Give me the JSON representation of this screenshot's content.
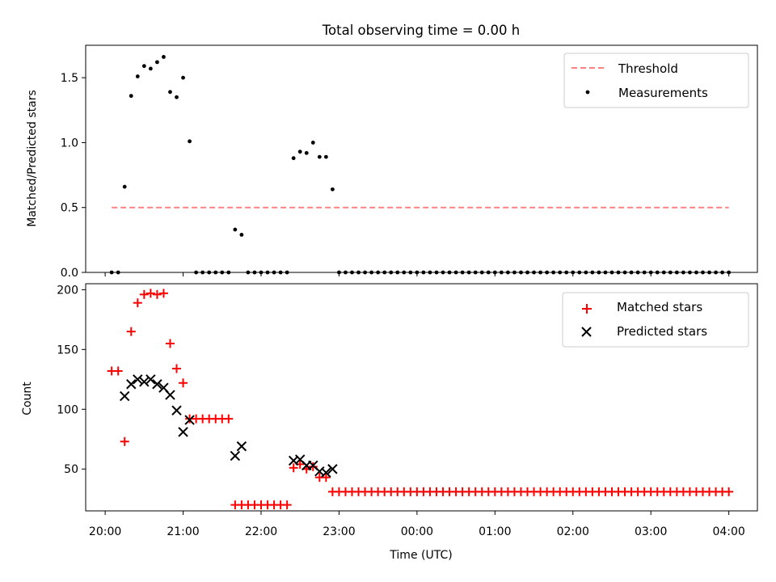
{
  "title": "Total observing time = 0.00 h",
  "chart_data": [
    {
      "type": "scatter",
      "ylabel": "Matched/Predicted stars",
      "ylim": [
        0,
        1.75
      ],
      "yticks": [
        0.0,
        0.5,
        1.0,
        1.5
      ],
      "ytick_labels": [
        "0.0",
        "0.5",
        "1.0",
        "1.5"
      ],
      "x_range": [
        "19:45",
        "04:22"
      ],
      "xticks": [
        "20:00",
        "21:00",
        "22:00",
        "23:00",
        "00:00",
        "01:00",
        "02:00",
        "03:00",
        "04:00"
      ],
      "legend_position": "top-right",
      "threshold": {
        "name": "Threshold",
        "value": 0.5,
        "color": "#ff8080",
        "x_start": "20:05",
        "x_end": "04:00"
      },
      "series": [
        {
          "name": "Measurements",
          "color": "#000000",
          "marker": "dot",
          "points": [
            [
              "20:05",
              0
            ],
            [
              "20:10",
              0
            ],
            [
              "20:15",
              0.66
            ],
            [
              "20:20",
              1.36
            ],
            [
              "20:25",
              1.51
            ],
            [
              "20:30",
              1.59
            ],
            [
              "20:35",
              1.57
            ],
            [
              "20:40",
              1.62
            ],
            [
              "20:45",
              1.66
            ],
            [
              "20:50",
              1.39
            ],
            [
              "20:55",
              1.35
            ],
            [
              "21:00",
              1.5
            ],
            [
              "21:05",
              1.01
            ],
            [
              "21:10",
              0
            ],
            [
              "21:15",
              0
            ],
            [
              "21:20",
              0
            ],
            [
              "21:25",
              0
            ],
            [
              "21:30",
              0
            ],
            [
              "21:35",
              0
            ],
            [
              "21:40",
              0.33
            ],
            [
              "21:45",
              0.29
            ],
            [
              "21:50",
              0
            ],
            [
              "21:55",
              0
            ],
            [
              "22:00",
              0
            ],
            [
              "22:05",
              0
            ],
            [
              "22:10",
              0
            ],
            [
              "22:15",
              0
            ],
            [
              "22:20",
              0
            ],
            [
              "22:25",
              0.88
            ],
            [
              "22:30",
              0.93
            ],
            [
              "22:35",
              0.92
            ],
            [
              "22:40",
              1.0
            ],
            [
              "22:45",
              0.89
            ],
            [
              "22:50",
              0.89
            ],
            [
              "22:55",
              0.64
            ],
            [
              "23:00",
              0
            ],
            [
              "23:05",
              0
            ],
            [
              "23:10",
              0
            ],
            [
              "23:15",
              0
            ],
            [
              "23:20",
              0
            ],
            [
              "23:25",
              0
            ],
            [
              "23:30",
              0
            ],
            [
              "23:35",
              0
            ],
            [
              "23:40",
              0
            ],
            [
              "23:45",
              0
            ],
            [
              "23:50",
              0
            ],
            [
              "23:55",
              0
            ],
            [
              "00:00",
              0
            ],
            [
              "00:05",
              0
            ],
            [
              "00:10",
              0
            ],
            [
              "00:15",
              0
            ],
            [
              "00:20",
              0
            ],
            [
              "00:25",
              0
            ],
            [
              "00:30",
              0
            ],
            [
              "00:35",
              0
            ],
            [
              "00:40",
              0
            ],
            [
              "00:45",
              0
            ],
            [
              "00:50",
              0
            ],
            [
              "00:55",
              0
            ],
            [
              "01:00",
              0
            ],
            [
              "01:05",
              0
            ],
            [
              "01:10",
              0
            ],
            [
              "01:15",
              0
            ],
            [
              "01:20",
              0
            ],
            [
              "01:25",
              0
            ],
            [
              "01:30",
              0
            ],
            [
              "01:35",
              0
            ],
            [
              "01:40",
              0
            ],
            [
              "01:45",
              0
            ],
            [
              "01:50",
              0
            ],
            [
              "01:55",
              0
            ],
            [
              "02:00",
              0
            ],
            [
              "02:05",
              0
            ],
            [
              "02:10",
              0
            ],
            [
              "02:15",
              0
            ],
            [
              "02:20",
              0
            ],
            [
              "02:25",
              0
            ],
            [
              "02:30",
              0
            ],
            [
              "02:35",
              0
            ],
            [
              "02:40",
              0
            ],
            [
              "02:45",
              0
            ],
            [
              "02:50",
              0
            ],
            [
              "02:55",
              0
            ],
            [
              "03:00",
              0
            ],
            [
              "03:05",
              0
            ],
            [
              "03:10",
              0
            ],
            [
              "03:15",
              0
            ],
            [
              "03:20",
              0
            ],
            [
              "03:25",
              0
            ],
            [
              "03:30",
              0
            ],
            [
              "03:35",
              0
            ],
            [
              "03:40",
              0
            ],
            [
              "03:45",
              0
            ],
            [
              "03:50",
              0
            ],
            [
              "03:55",
              0
            ],
            [
              "04:00",
              0
            ]
          ]
        }
      ]
    },
    {
      "type": "scatter",
      "xlabel": "Time (UTC)",
      "ylabel": "Count",
      "ylim": [
        15,
        205
      ],
      "yticks": [
        50,
        100,
        150,
        200
      ],
      "ytick_labels": [
        "50",
        "100",
        "150",
        "200"
      ],
      "x_range": [
        "19:45",
        "04:22"
      ],
      "xticks": [
        "20:00",
        "21:00",
        "22:00",
        "23:00",
        "00:00",
        "01:00",
        "02:00",
        "03:00",
        "04:00"
      ],
      "legend_position": "top-right",
      "series": [
        {
          "name": "Matched stars",
          "color": "#ff0000",
          "marker": "plus",
          "points": [
            [
              "20:05",
              132
            ],
            [
              "20:10",
              132
            ],
            [
              "20:15",
              73
            ],
            [
              "20:20",
              165
            ],
            [
              "20:25",
              189
            ],
            [
              "20:30",
              196
            ],
            [
              "20:35",
              197
            ],
            [
              "20:40",
              196
            ],
            [
              "20:45",
              197
            ],
            [
              "20:50",
              155
            ],
            [
              "20:55",
              134
            ],
            [
              "21:00",
              122
            ],
            [
              "21:05",
              92
            ],
            [
              "21:10",
              92
            ],
            [
              "21:15",
              92
            ],
            [
              "21:20",
              92
            ],
            [
              "21:25",
              92
            ],
            [
              "21:30",
              92
            ],
            [
              "21:35",
              92
            ],
            [
              "21:40",
              20
            ],
            [
              "21:45",
              20
            ],
            [
              "21:50",
              20
            ],
            [
              "21:55",
              20
            ],
            [
              "22:00",
              20
            ],
            [
              "22:05",
              20
            ],
            [
              "22:10",
              20
            ],
            [
              "22:15",
              20
            ],
            [
              "22:20",
              20
            ],
            [
              "22:25",
              51
            ],
            [
              "22:30",
              54
            ],
            [
              "22:35",
              50
            ],
            [
              "22:40",
              52
            ],
            [
              "22:45",
              43
            ],
            [
              "22:50",
              43
            ],
            [
              "22:55",
              31
            ],
            [
              "23:00",
              31
            ],
            [
              "23:05",
              31
            ],
            [
              "23:10",
              31
            ],
            [
              "23:15",
              31
            ],
            [
              "23:20",
              31
            ],
            [
              "23:25",
              31
            ],
            [
              "23:30",
              31
            ],
            [
              "23:35",
              31
            ],
            [
              "23:40",
              31
            ],
            [
              "23:45",
              31
            ],
            [
              "23:50",
              31
            ],
            [
              "23:55",
              31
            ],
            [
              "00:00",
              31
            ],
            [
              "00:05",
              31
            ],
            [
              "00:10",
              31
            ],
            [
              "00:15",
              31
            ],
            [
              "00:20",
              31
            ],
            [
              "00:25",
              31
            ],
            [
              "00:30",
              31
            ],
            [
              "00:35",
              31
            ],
            [
              "00:40",
              31
            ],
            [
              "00:45",
              31
            ],
            [
              "00:50",
              31
            ],
            [
              "00:55",
              31
            ],
            [
              "01:00",
              31
            ],
            [
              "01:05",
              31
            ],
            [
              "01:10",
              31
            ],
            [
              "01:15",
              31
            ],
            [
              "01:20",
              31
            ],
            [
              "01:25",
              31
            ],
            [
              "01:30",
              31
            ],
            [
              "01:35",
              31
            ],
            [
              "01:40",
              31
            ],
            [
              "01:45",
              31
            ],
            [
              "01:50",
              31
            ],
            [
              "01:55",
              31
            ],
            [
              "02:00",
              31
            ],
            [
              "02:05",
              31
            ],
            [
              "02:10",
              31
            ],
            [
              "02:15",
              31
            ],
            [
              "02:20",
              31
            ],
            [
              "02:25",
              31
            ],
            [
              "02:30",
              31
            ],
            [
              "02:35",
              31
            ],
            [
              "02:40",
              31
            ],
            [
              "02:45",
              31
            ],
            [
              "02:50",
              31
            ],
            [
              "02:55",
              31
            ],
            [
              "03:00",
              31
            ],
            [
              "03:05",
              31
            ],
            [
              "03:10",
              31
            ],
            [
              "03:15",
              31
            ],
            [
              "03:20",
              31
            ],
            [
              "03:25",
              31
            ],
            [
              "03:30",
              31
            ],
            [
              "03:35",
              31
            ],
            [
              "03:40",
              31
            ],
            [
              "03:45",
              31
            ],
            [
              "03:50",
              31
            ],
            [
              "03:55",
              31
            ],
            [
              "04:00",
              31
            ]
          ]
        },
        {
          "name": "Predicted stars",
          "color": "#000000",
          "marker": "x",
          "points": [
            [
              "20:15",
              111
            ],
            [
              "20:20",
              121
            ],
            [
              "20:25",
              125
            ],
            [
              "20:30",
              123
            ],
            [
              "20:35",
              125
            ],
            [
              "20:40",
              121
            ],
            [
              "20:45",
              118
            ],
            [
              "20:50",
              112
            ],
            [
              "20:55",
              99
            ],
            [
              "21:00",
              81
            ],
            [
              "21:05",
              91
            ],
            [
              "21:40",
              61
            ],
            [
              "21:45",
              69
            ],
            [
              "22:25",
              57
            ],
            [
              "22:30",
              58
            ],
            [
              "22:35",
              53
            ],
            [
              "22:40",
              53
            ],
            [
              "22:45",
              48
            ],
            [
              "22:50",
              47
            ],
            [
              "22:55",
              50
            ]
          ]
        }
      ]
    }
  ]
}
